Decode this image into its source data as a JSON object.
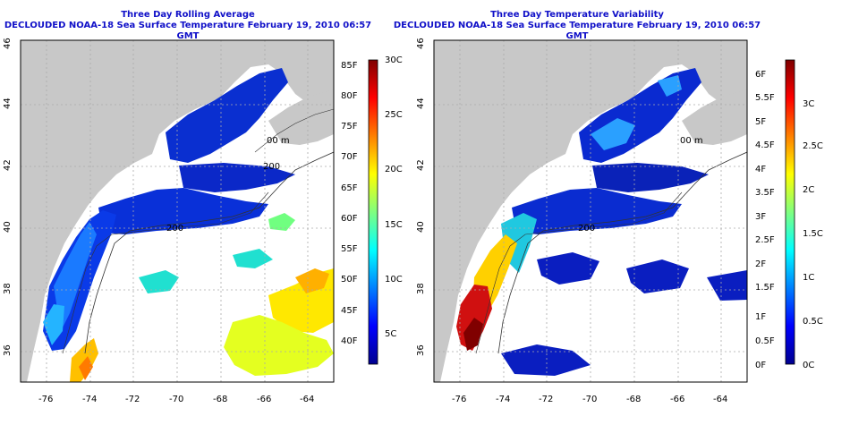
{
  "panels": [
    {
      "title_line1": "Three Day Rolling Average",
      "title_line2": "DECLOUDED NOAA-18 Sea Surface Temperature February 19, 2010 06:57 GMT",
      "colorbar_left": [
        "85F",
        "80F",
        "75F",
        "70F",
        "65F",
        "60F",
        "55F",
        "50F",
        "45F",
        "40F"
      ],
      "colorbar_right": [
        "30C",
        "25C",
        "20C",
        "15C",
        "10C",
        "5C"
      ]
    },
    {
      "title_line1": "Three Day Temperature Variability",
      "title_line2": "DECLOUDED NOAA-18 Sea Surface Temperature February 19, 2010 06:57 GMT",
      "colorbar_left": [
        "6F",
        "5.5F",
        "5F",
        "4.5F",
        "4F",
        "3.5F",
        "3F",
        "2.5F",
        "2F",
        "1.5F",
        "1F",
        "0.5F",
        "0F"
      ],
      "colorbar_right": [
        "3C",
        "2.5C",
        "2C",
        "1.5C",
        "1C",
        "0.5C",
        "0C"
      ]
    }
  ],
  "map": {
    "lon_labels": [
      "-76",
      "-74",
      "-72",
      "-70",
      "-68",
      "-66",
      "-64"
    ],
    "lat_labels": [
      "46",
      "44",
      "42",
      "40",
      "38",
      "36"
    ],
    "contour_labels": [
      "200",
      "200",
      "00 m",
      "200"
    ]
  },
  "colors": {
    "land": "#c8c8c8",
    "title": "#1010c8"
  }
}
